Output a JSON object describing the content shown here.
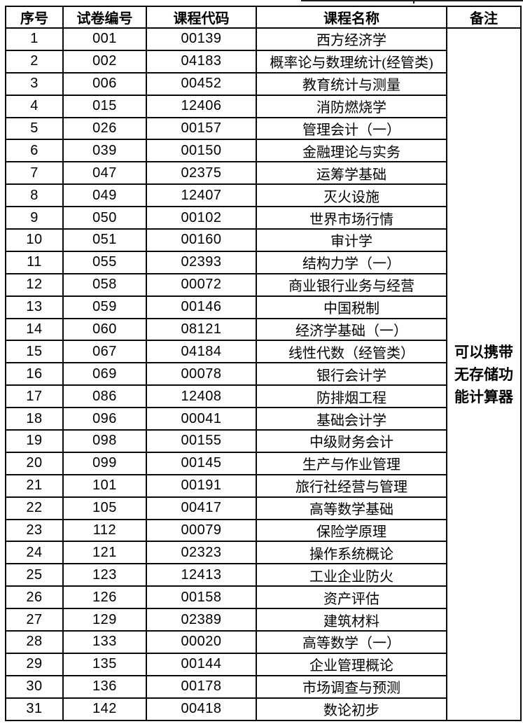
{
  "table": {
    "headers": [
      "序号",
      "试卷编号",
      "课程代码",
      "课程名称",
      "备注"
    ],
    "remark_text": "可以携带\n无存储功\n能计算器",
    "border_color": "#0a0a0a",
    "rows": [
      [
        "1",
        "001",
        "00139",
        "西方经济学"
      ],
      [
        "2",
        "002",
        "04183",
        "概率论与数理统计(经管类)"
      ],
      [
        "3",
        "006",
        "00452",
        "教育统计与测量"
      ],
      [
        "4",
        "015",
        "12406",
        "消防燃烧学"
      ],
      [
        "5",
        "026",
        "00157",
        "管理会计（一）"
      ],
      [
        "6",
        "039",
        "00150",
        "金融理论与实务"
      ],
      [
        "7",
        "047",
        "02375",
        "运筹学基础"
      ],
      [
        "8",
        "049",
        "12407",
        "灭火设施"
      ],
      [
        "9",
        "050",
        "00102",
        "世界市场行情"
      ],
      [
        "10",
        "051",
        "00160",
        "审计学"
      ],
      [
        "11",
        "055",
        "02393",
        "结构力学（一）"
      ],
      [
        "12",
        "058",
        "00072",
        "商业银行业务与经营"
      ],
      [
        "13",
        "059",
        "00146",
        "中国税制"
      ],
      [
        "14",
        "060",
        "08121",
        "经济学基础（一）"
      ],
      [
        "15",
        "067",
        "04184",
        "线性代数（经管类）"
      ],
      [
        "16",
        "069",
        "00078",
        "银行会计学"
      ],
      [
        "17",
        "086",
        "12408",
        "防排烟工程"
      ],
      [
        "18",
        "096",
        "00041",
        "基础会计学"
      ],
      [
        "19",
        "098",
        "00155",
        "中级财务会计"
      ],
      [
        "20",
        "099",
        "00145",
        "生产与作业管理"
      ],
      [
        "21",
        "101",
        "00191",
        "旅行社经营与管理"
      ],
      [
        "22",
        "105",
        "00417",
        "高等数学基础"
      ],
      [
        "23",
        "112",
        "00079",
        "保险学原理"
      ],
      [
        "24",
        "121",
        "02323",
        "操作系统概论"
      ],
      [
        "25",
        "123",
        "12413",
        "工业企业防火"
      ],
      [
        "26",
        "126",
        "00158",
        "资产评估"
      ],
      [
        "27",
        "129",
        "02389",
        "建筑材料"
      ],
      [
        "28",
        "133",
        "00020",
        "高等数学（一）"
      ],
      [
        "29",
        "135",
        "00144",
        "企业管理概论"
      ],
      [
        "30",
        "136",
        "00178",
        "市场调查与预测"
      ],
      [
        "31",
        "142",
        "00418",
        "数论初步"
      ]
    ]
  }
}
